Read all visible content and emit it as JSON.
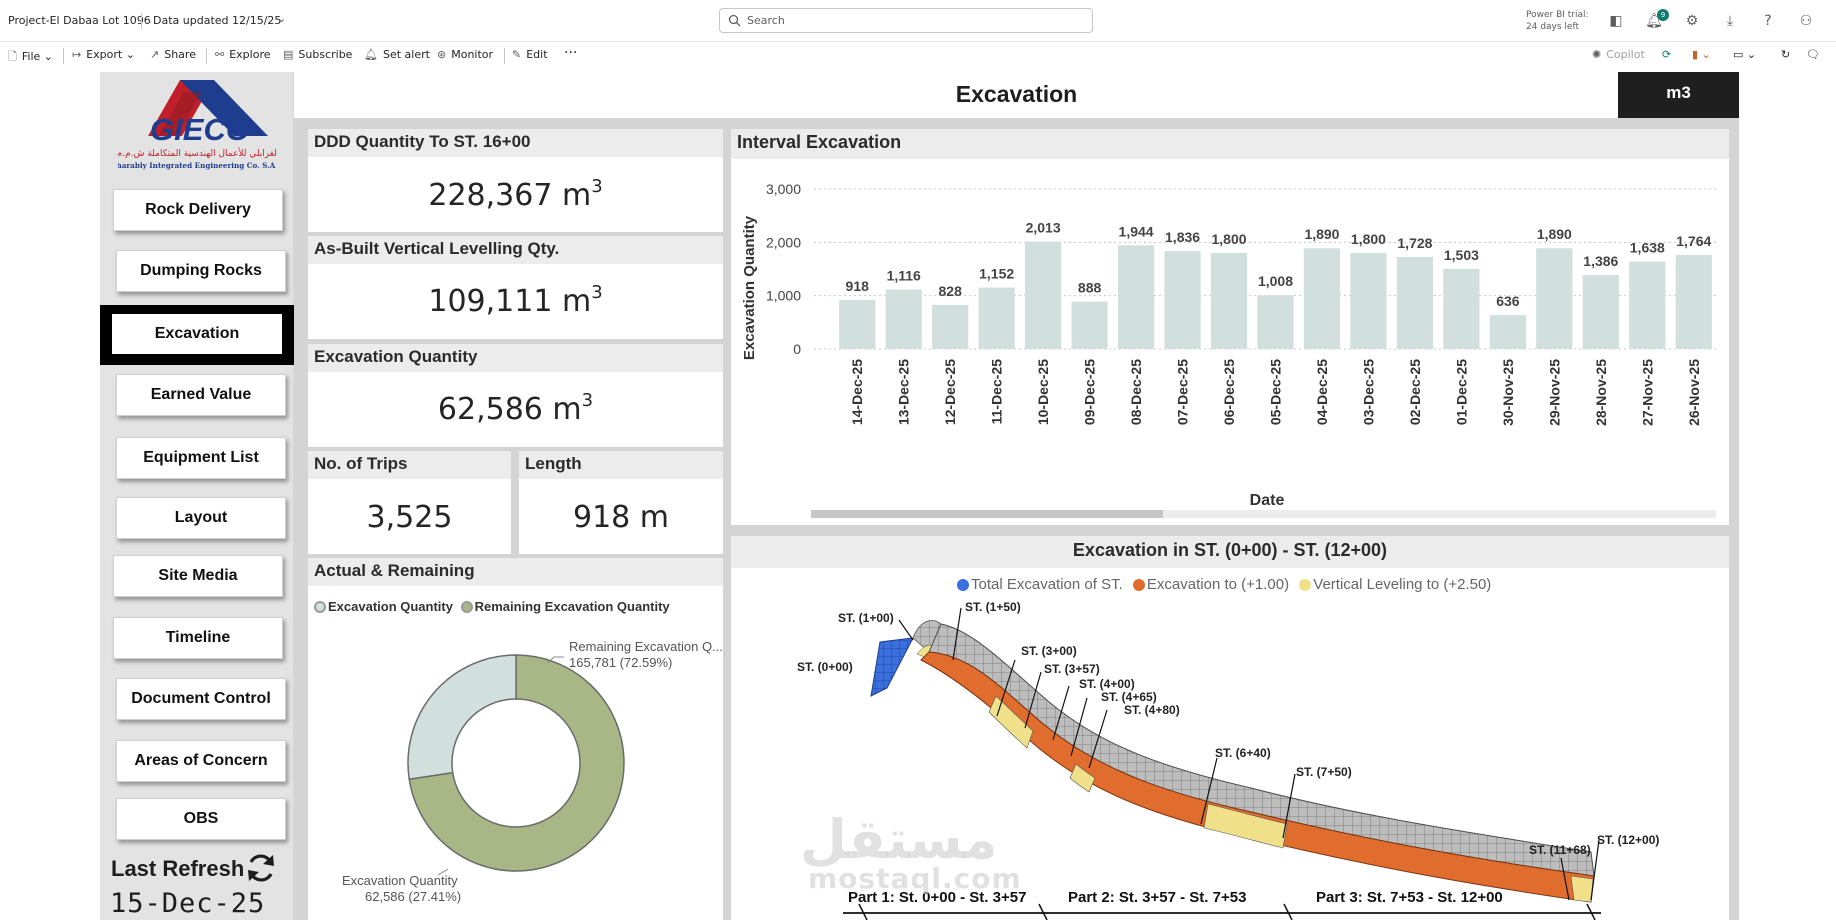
{
  "topbar": {
    "project": "Project-El Dabaa Lot 1096",
    "data_updated": "Data updated 12/15/25",
    "search_placeholder": "Search",
    "trial_line1": "Power BI trial:",
    "trial_line2": "24 days left",
    "notification_count": "9"
  },
  "commands": {
    "file": "File",
    "export": "Export",
    "share": "Share",
    "explore": "Explore",
    "subscribe": "Subscribe",
    "set_alert": "Set alert",
    "monitor": "Monitor",
    "edit": "Edit",
    "more": "···",
    "copilot": "Copilot"
  },
  "logo": {
    "brand": "GIECO",
    "arabic": "الغرابلي للأعمال الهندسية المتكاملة ش.م.م",
    "english": "Gharably Integrated Engineering Co. S.A.E."
  },
  "nav": [
    {
      "label": "Rock Delivery"
    },
    {
      "label": "Dumping Rocks"
    },
    {
      "label": "Excavation"
    },
    {
      "label": "Earned Value"
    },
    {
      "label": "Equipment List"
    },
    {
      "label": "Layout"
    },
    {
      "label": "Site Media"
    },
    {
      "label": "Timeline"
    },
    {
      "label": "Document Control"
    },
    {
      "label": "Areas of Concern"
    },
    {
      "label": "OBS"
    }
  ],
  "last_refresh": {
    "label": "Last Refresh",
    "date": "15-Dec-25"
  },
  "page": {
    "title": "Excavation",
    "unit": "m3"
  },
  "kpis": {
    "ddd": {
      "title": "DDD Quantity To ST. 16+00",
      "value": "228,367 m",
      "sup": "3"
    },
    "asbuilt": {
      "title": "As-Built Vertical Levelling Qty.",
      "value": "109,111 m",
      "sup": "3"
    },
    "excav": {
      "title": "Excavation Quantity",
      "value": "62,586 m",
      "sup": "3"
    },
    "trips": {
      "title": "No. of Trips",
      "value": "3,525"
    },
    "length": {
      "title": "Length",
      "value": "918 m"
    }
  },
  "donut": {
    "title": "Actual & Remaining",
    "legend_excavation": "Excavation Quantity",
    "legend_remaining": "Remaining Excavation Quantity",
    "remaining_label": "Remaining Excavation Q...",
    "remaining_value": "165,781 (72.59%)",
    "excavation_label": "Excavation Quantity",
    "excavation_value": "62,586 (27.41%)",
    "colors": {
      "excavation": "#d2e0dd",
      "remaining": "#a8b785"
    }
  },
  "chart_data": {
    "type": "bar",
    "title": "Interval Excavation",
    "xlabel": "Date",
    "ylabel": "Excavation Quantity",
    "ylim": [
      0,
      3000
    ],
    "yticks": [
      "0",
      "1,000",
      "2,000",
      "3,000"
    ],
    "grid": true,
    "bar_color": "#d2e0dd",
    "categories": [
      "14-Dec-25",
      "13-Dec-25",
      "12-Dec-25",
      "11-Dec-25",
      "10-Dec-25",
      "09-Dec-25",
      "08-Dec-25",
      "07-Dec-25",
      "06-Dec-25",
      "05-Dec-25",
      "04-Dec-25",
      "03-Dec-25",
      "02-Dec-25",
      "01-Dec-25",
      "30-Nov-25",
      "29-Nov-25",
      "28-Nov-25",
      "27-Nov-25",
      "26-Nov-25"
    ],
    "values": [
      918,
      1116,
      828,
      1152,
      2013,
      888,
      1944,
      1836,
      1800,
      1008,
      1890,
      1800,
      1728,
      1503,
      636,
      1890,
      1386,
      1638,
      1764
    ],
    "labels": [
      "918",
      "1,116",
      "828",
      "1,152",
      "2,013",
      "888",
      "1,944",
      "1,836",
      "1,800",
      "1,008",
      "1,890",
      "1,800",
      "1,728",
      "1,503",
      "636",
      "1,890",
      "1,386",
      "1,638",
      "1,764"
    ]
  },
  "diagram": {
    "title": "Excavation in ST. (0+00) - ST. (12+00)",
    "legend": [
      {
        "label": "Total Excavation of ST.",
        "color": "#3b6fdc"
      },
      {
        "label": "Excavation to (+1.00)",
        "color": "#e06c2e"
      },
      {
        "label": "Vertical Leveling to (+2.50)",
        "color": "#f0e08a"
      }
    ],
    "stations": [
      "ST. (0+00)",
      "ST. (1+00)",
      "ST. (1+50)",
      "ST. (3+00)",
      "ST. (3+57)",
      "ST. (4+00)",
      "ST. (4+65)",
      "ST. (4+80)",
      "ST. (6+40)",
      "ST. (7+50)",
      "ST. (11+68)",
      "ST. (12+00)"
    ],
    "parts": [
      "Part 1: St. 0+00 - St. 3+57",
      "Part 2: St. 3+57 - St. 7+53",
      "Part 3: St. 7+53 - St. 12+00"
    ]
  },
  "watermark": {
    "arabic": "مستقل",
    "latin": "mostaql.com"
  }
}
